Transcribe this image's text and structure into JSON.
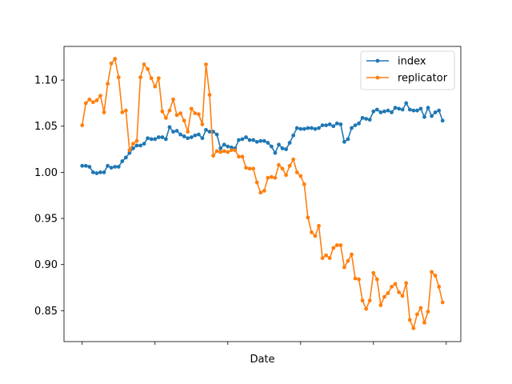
{
  "chart_data": {
    "type": "line",
    "xlabel": "Date",
    "ylabel": "",
    "ylim": [
      0.8165,
      1.1365
    ],
    "grid": false,
    "legend_position": "top-right",
    "x_points": 100,
    "x_tick_positions": [
      0,
      20,
      40,
      60,
      80,
      100
    ],
    "x_tick_labels": [
      "",
      "",
      "",
      "",
      "",
      ""
    ],
    "y_ticks": [
      0.85,
      0.9,
      0.95,
      1.0,
      1.05,
      1.1
    ],
    "y_tick_labels": [
      "0.85",
      "0.90",
      "0.95",
      "1.00",
      "1.05",
      "1.10"
    ],
    "series": [
      {
        "name": "index",
        "color": "#1f77b4",
        "marker": "circle",
        "values": [
          1.007,
          1.007,
          1.006,
          1.0,
          0.999,
          1.0,
          1.0,
          1.007,
          1.005,
          1.006,
          1.006,
          1.012,
          1.016,
          1.021,
          1.026,
          1.029,
          1.029,
          1.031,
          1.037,
          1.036,
          1.036,
          1.038,
          1.038,
          1.036,
          1.049,
          1.044,
          1.045,
          1.041,
          1.039,
          1.037,
          1.038,
          1.04,
          1.041,
          1.037,
          1.046,
          1.044,
          1.044,
          1.041,
          1.026,
          1.03,
          1.028,
          1.027,
          1.026,
          1.035,
          1.036,
          1.038,
          1.035,
          1.035,
          1.033,
          1.034,
          1.034,
          1.032,
          1.028,
          1.021,
          1.03,
          1.026,
          1.025,
          1.032,
          1.04,
          1.048,
          1.047,
          1.047,
          1.048,
          1.048,
          1.047,
          1.048,
          1.051,
          1.051,
          1.052,
          1.05,
          1.053,
          1.052,
          1.033,
          1.036,
          1.048,
          1.051,
          1.053,
          1.059,
          1.058,
          1.057,
          1.066,
          1.068,
          1.065,
          1.066,
          1.067,
          1.065,
          1.07,
          1.069,
          1.068,
          1.075,
          1.068,
          1.067,
          1.067,
          1.069,
          1.06,
          1.07,
          1.061,
          1.065,
          1.067,
          1.056
        ]
      },
      {
        "name": "replicator",
        "color": "#ff7f0e",
        "marker": "circle",
        "values": [
          1.051,
          1.075,
          1.079,
          1.076,
          1.078,
          1.083,
          1.065,
          1.096,
          1.118,
          1.123,
          1.103,
          1.065,
          1.067,
          1.024,
          1.031,
          1.034,
          1.103,
          1.117,
          1.112,
          1.102,
          1.093,
          1.102,
          1.066,
          1.059,
          1.067,
          1.079,
          1.062,
          1.064,
          1.056,
          1.044,
          1.069,
          1.064,
          1.063,
          1.052,
          1.117,
          1.084,
          1.018,
          1.023,
          1.022,
          1.023,
          1.022,
          1.024,
          1.024,
          1.017,
          1.017,
          1.005,
          1.004,
          1.004,
          0.989,
          0.978,
          0.98,
          0.994,
          0.995,
          0.994,
          1.008,
          1.004,
          0.997,
          1.007,
          1.014,
          1.0,
          0.996,
          0.987,
          0.951,
          0.935,
          0.931,
          0.942,
          0.907,
          0.91,
          0.907,
          0.918,
          0.921,
          0.921,
          0.897,
          0.904,
          0.911,
          0.885,
          0.884,
          0.861,
          0.852,
          0.861,
          0.891,
          0.884,
          0.856,
          0.865,
          0.869,
          0.876,
          0.879,
          0.87,
          0.866,
          0.88,
          0.84,
          0.831,
          0.846,
          0.853,
          0.837,
          0.849,
          0.892,
          0.888,
          0.876,
          0.859
        ]
      }
    ]
  }
}
